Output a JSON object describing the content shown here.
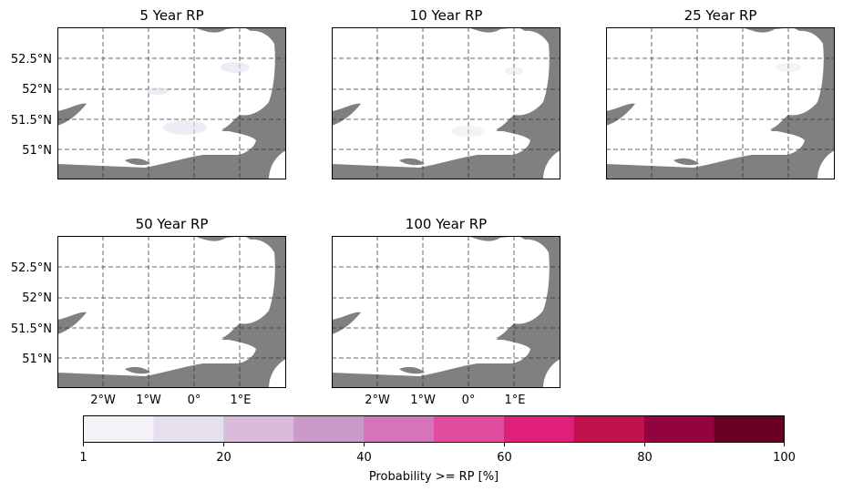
{
  "figure": {
    "panels": [
      {
        "title": "5 Year RP"
      },
      {
        "title": "10 Year RP"
      },
      {
        "title": "25 Year RP"
      },
      {
        "title": "50 Year RP"
      },
      {
        "title": "100 Year RP"
      }
    ],
    "lat_ticks": [
      "52.5°N",
      "52°N",
      "51.5°N",
      "51°N"
    ],
    "lon_ticks": [
      "2°W",
      "1°W",
      "0°",
      "1°E"
    ],
    "colorbar": {
      "label": "Probability >= RP [%]",
      "tick_labels": [
        "1",
        "20",
        "40",
        "60",
        "80",
        "100"
      ],
      "colors": [
        "#f4f1f8",
        "#e6dfee",
        "#d9bbdc",
        "#cb9acb",
        "#d574b8",
        "#e14c9f",
        "#e01f79",
        "#c1114f",
        "#930340",
        "#680022"
      ],
      "land_color": "#ffffff",
      "sea_color": "#808080"
    }
  }
}
